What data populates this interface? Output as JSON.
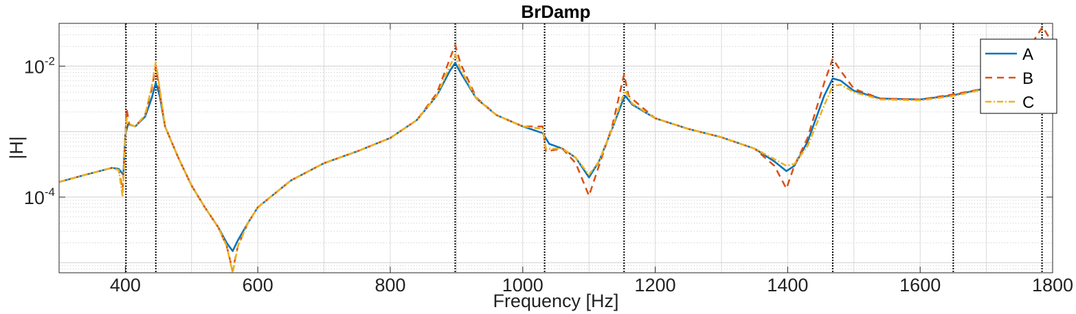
{
  "chart_data": {
    "type": "line",
    "title": "BrDamp",
    "xlabel": "Frequency [Hz]",
    "ylabel": "|H|",
    "xlim": [
      300,
      1800
    ],
    "ylim": [
      7e-06,
      0.045
    ],
    "yscale": "log",
    "grid": true,
    "legend_position": "top-right",
    "x_ticks": [
      400,
      600,
      800,
      1000,
      1200,
      1400,
      1600,
      1800
    ],
    "y_ticks": [
      {
        "value": 0.0001,
        "base": "10",
        "exp": "-4"
      },
      {
        "value": 0.01,
        "base": "10",
        "exp": "-2"
      }
    ],
    "vertical_lines_x": [
      401,
      446,
      898,
      1033,
      1153,
      1468,
      1650,
      1784
    ],
    "series": [
      {
        "name": "A",
        "color": "#0072BD",
        "dash": "solid",
        "points": [
          [
            300,
            0.00017
          ],
          [
            340,
            0.00022
          ],
          [
            380,
            0.00028
          ],
          [
            390,
            0.00027
          ],
          [
            397,
            0.00022
          ],
          [
            400,
            0.0009
          ],
          [
            404,
            0.0013
          ],
          [
            415,
            0.0012
          ],
          [
            430,
            0.0017
          ],
          [
            440,
            0.0033
          ],
          [
            446,
            0.0056
          ],
          [
            452,
            0.0035
          ],
          [
            460,
            0.0012
          ],
          [
            480,
            0.0004
          ],
          [
            500,
            0.00015
          ],
          [
            520,
            7e-05
          ],
          [
            540,
            3.5e-05
          ],
          [
            553,
            2e-05
          ],
          [
            562,
            1.5e-05
          ],
          [
            570,
            2.2e-05
          ],
          [
            585,
            4e-05
          ],
          [
            600,
            7e-05
          ],
          [
            650,
            0.00018
          ],
          [
            700,
            0.00033
          ],
          [
            750,
            0.0005
          ],
          [
            800,
            0.0008
          ],
          [
            840,
            0.0015
          ],
          [
            870,
            0.0035
          ],
          [
            890,
            0.0085
          ],
          [
            898,
            0.0112
          ],
          [
            906,
            0.008
          ],
          [
            930,
            0.0032
          ],
          [
            960,
            0.0018
          ],
          [
            1000,
            0.0012
          ],
          [
            1030,
            0.00095
          ],
          [
            1040,
            0.00065
          ],
          [
            1060,
            0.00055
          ],
          [
            1080,
            0.0004
          ],
          [
            1100,
            0.0002
          ],
          [
            1115,
            0.00035
          ],
          [
            1135,
            0.0011
          ],
          [
            1150,
            0.0028
          ],
          [
            1155,
            0.0035
          ],
          [
            1165,
            0.0026
          ],
          [
            1200,
            0.0016
          ],
          [
            1250,
            0.0011
          ],
          [
            1300,
            0.00082
          ],
          [
            1350,
            0.00055
          ],
          [
            1380,
            0.00035
          ],
          [
            1398,
            0.00025
          ],
          [
            1410,
            0.0003
          ],
          [
            1430,
            0.0007
          ],
          [
            1455,
            0.0035
          ],
          [
            1468,
            0.0065
          ],
          [
            1480,
            0.006
          ],
          [
            1500,
            0.0042
          ],
          [
            1540,
            0.0032
          ],
          [
            1600,
            0.0031
          ],
          [
            1650,
            0.0036
          ],
          [
            1700,
            0.0046
          ],
          [
            1750,
            0.009
          ],
          [
            1775,
            0.017
          ],
          [
            1790,
            0.021
          ],
          [
            1800,
            0.018
          ]
        ]
      },
      {
        "name": "B",
        "color": "#D95319",
        "dash": "10,7",
        "points": [
          [
            300,
            0.00017
          ],
          [
            340,
            0.00022
          ],
          [
            380,
            0.00028
          ],
          [
            390,
            0.00026
          ],
          [
            396,
            0.00013
          ],
          [
            400,
            0.0008
          ],
          [
            402,
            0.0022
          ],
          [
            406,
            0.0013
          ],
          [
            415,
            0.0012
          ],
          [
            430,
            0.0018
          ],
          [
            440,
            0.0045
          ],
          [
            446,
            0.01
          ],
          [
            452,
            0.004
          ],
          [
            460,
            0.0012
          ],
          [
            480,
            0.0004
          ],
          [
            500,
            0.00015
          ],
          [
            520,
            7e-05
          ],
          [
            540,
            3.5e-05
          ],
          [
            553,
            1.8e-05
          ],
          [
            562,
            7.5e-06
          ],
          [
            570,
            1.8e-05
          ],
          [
            585,
            4e-05
          ],
          [
            600,
            7e-05
          ],
          [
            650,
            0.00018
          ],
          [
            700,
            0.00033
          ],
          [
            750,
            0.0005
          ],
          [
            800,
            0.0008
          ],
          [
            840,
            0.0015
          ],
          [
            870,
            0.0038
          ],
          [
            890,
            0.013
          ],
          [
            898,
            0.021
          ],
          [
            906,
            0.011
          ],
          [
            930,
            0.0033
          ],
          [
            960,
            0.0018
          ],
          [
            1000,
            0.0012
          ],
          [
            1030,
            0.0012
          ],
          [
            1035,
            0.0005
          ],
          [
            1060,
            0.00055
          ],
          [
            1080,
            0.00033
          ],
          [
            1100,
            0.000105
          ],
          [
            1115,
            0.0003
          ],
          [
            1135,
            0.0012
          ],
          [
            1150,
            0.0055
          ],
          [
            1153,
            0.0075
          ],
          [
            1160,
            0.0035
          ],
          [
            1200,
            0.0016
          ],
          [
            1250,
            0.0011
          ],
          [
            1300,
            0.00082
          ],
          [
            1350,
            0.00055
          ],
          [
            1380,
            0.0003
          ],
          [
            1398,
            0.000135
          ],
          [
            1410,
            0.0003
          ],
          [
            1430,
            0.0008
          ],
          [
            1455,
            0.0055
          ],
          [
            1468,
            0.013
          ],
          [
            1480,
            0.0085
          ],
          [
            1500,
            0.0045
          ],
          [
            1540,
            0.0032
          ],
          [
            1600,
            0.0031
          ],
          [
            1650,
            0.0037
          ],
          [
            1700,
            0.0046
          ],
          [
            1750,
            0.01
          ],
          [
            1775,
            0.028
          ],
          [
            1785,
            0.04
          ],
          [
            1800,
            0.022
          ]
        ]
      },
      {
        "name": "C",
        "color": "#EDB120",
        "dash": "9,3,2,3",
        "points": [
          [
            300,
            0.00017
          ],
          [
            340,
            0.00022
          ],
          [
            380,
            0.00028
          ],
          [
            390,
            0.00026
          ],
          [
            396,
            0.0001
          ],
          [
            400,
            0.0008
          ],
          [
            402,
            0.0016
          ],
          [
            406,
            0.0013
          ],
          [
            415,
            0.0012
          ],
          [
            430,
            0.0018
          ],
          [
            440,
            0.005
          ],
          [
            446,
            0.0115
          ],
          [
            452,
            0.0045
          ],
          [
            460,
            0.0012
          ],
          [
            480,
            0.0004
          ],
          [
            500,
            0.00015
          ],
          [
            520,
            7e-05
          ],
          [
            540,
            3.5e-05
          ],
          [
            553,
            1.8e-05
          ],
          [
            562,
            7e-06
          ],
          [
            570,
            1.8e-05
          ],
          [
            585,
            4e-05
          ],
          [
            600,
            7e-05
          ],
          [
            650,
            0.00018
          ],
          [
            700,
            0.00033
          ],
          [
            750,
            0.0005
          ],
          [
            800,
            0.0008
          ],
          [
            840,
            0.0015
          ],
          [
            870,
            0.0035
          ],
          [
            890,
            0.01
          ],
          [
            898,
            0.015
          ],
          [
            906,
            0.009
          ],
          [
            930,
            0.0032
          ],
          [
            960,
            0.0018
          ],
          [
            1000,
            0.0012
          ],
          [
            1030,
            0.0011
          ],
          [
            1035,
            0.00055
          ],
          [
            1060,
            0.00055
          ],
          [
            1080,
            0.0004
          ],
          [
            1100,
            0.00022
          ],
          [
            1115,
            0.00035
          ],
          [
            1135,
            0.0011
          ],
          [
            1150,
            0.0032
          ],
          [
            1155,
            0.0042
          ],
          [
            1165,
            0.0027
          ],
          [
            1200,
            0.0016
          ],
          [
            1250,
            0.0011
          ],
          [
            1300,
            0.00082
          ],
          [
            1350,
            0.00055
          ],
          [
            1380,
            0.00038
          ],
          [
            1398,
            0.0003
          ],
          [
            1410,
            0.00032
          ],
          [
            1430,
            0.0006
          ],
          [
            1455,
            0.0025
          ],
          [
            1468,
            0.005
          ],
          [
            1480,
            0.0052
          ],
          [
            1500,
            0.004
          ],
          [
            1540,
            0.0031
          ],
          [
            1600,
            0.003
          ],
          [
            1650,
            0.0035
          ],
          [
            1700,
            0.0045
          ],
          [
            1750,
            0.007
          ],
          [
            1775,
            0.012
          ],
          [
            1790,
            0.013
          ],
          [
            1800,
            0.012
          ]
        ]
      }
    ]
  }
}
